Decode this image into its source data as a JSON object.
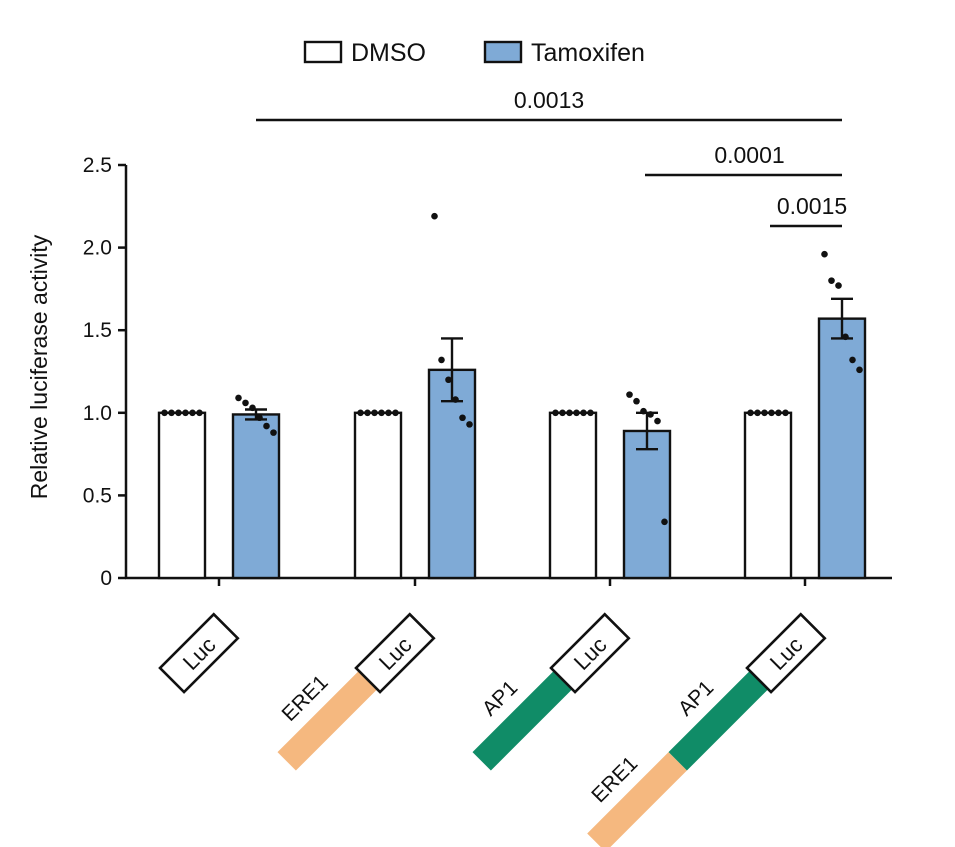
{
  "chart_data": {
    "type": "bar",
    "title": "",
    "xlabel": "",
    "ylabel": "Relative luciferase activity",
    "ylim": [
      0,
      2.5
    ],
    "yticks": [
      "0",
      "0.5",
      "1.0",
      "1.5",
      "2.0",
      "2.5"
    ],
    "grid": false,
    "legend_position": "top",
    "categories": [
      "Luc",
      "ERE1-Luc",
      "AP1-Luc",
      "ERE1-AP1-Luc"
    ],
    "series": [
      {
        "name": "DMSO",
        "color": "#ffffff",
        "values": [
          1.0,
          1.0,
          1.0,
          1.0
        ],
        "errors": [
          0,
          0,
          0,
          0
        ],
        "points": [
          [
            1.0,
            1.0,
            1.0,
            1.0,
            1.0,
            1.0
          ],
          [
            1.0,
            1.0,
            1.0,
            1.0,
            1.0,
            1.0
          ],
          [
            1.0,
            1.0,
            1.0,
            1.0,
            1.0,
            1.0
          ],
          [
            1.0,
            1.0,
            1.0,
            1.0,
            1.0,
            1.0
          ]
        ]
      },
      {
        "name": "Tamoxifen",
        "color": "#7faad6",
        "values": [
          0.99,
          1.26,
          0.89,
          1.57
        ],
        "errors": [
          0.03,
          0.19,
          0.11,
          0.12
        ],
        "points": [
          [
            1.09,
            1.06,
            1.03,
            0.97,
            0.92,
            0.88
          ],
          [
            2.19,
            1.32,
            1.2,
            1.08,
            0.97,
            0.93
          ],
          [
            1.11,
            1.07,
            1.01,
            0.99,
            0.95,
            0.34
          ],
          [
            1.96,
            1.8,
            1.77,
            1.46,
            1.32,
            1.26
          ]
        ]
      }
    ],
    "significance": [
      {
        "label": "0.0013",
        "from_group": 0,
        "to_group": 3
      },
      {
        "label": "0.0001",
        "from_group": 2,
        "to_group": 3
      },
      {
        "label": "0.0015",
        "from_group": 3,
        "to_group": 3
      }
    ],
    "constructs": [
      {
        "luc": "Luc",
        "elements": []
      },
      {
        "luc": "Luc",
        "elements": [
          {
            "label": "ERE1",
            "color": "#f5b87f"
          }
        ]
      },
      {
        "luc": "Luc",
        "elements": [
          {
            "label": "AP1",
            "color": "#108c67"
          }
        ]
      },
      {
        "luc": "Luc",
        "elements": [
          {
            "label": "AP1",
            "color": "#108c67"
          },
          {
            "label": "ERE1",
            "color": "#f5b87f"
          }
        ]
      }
    ]
  }
}
